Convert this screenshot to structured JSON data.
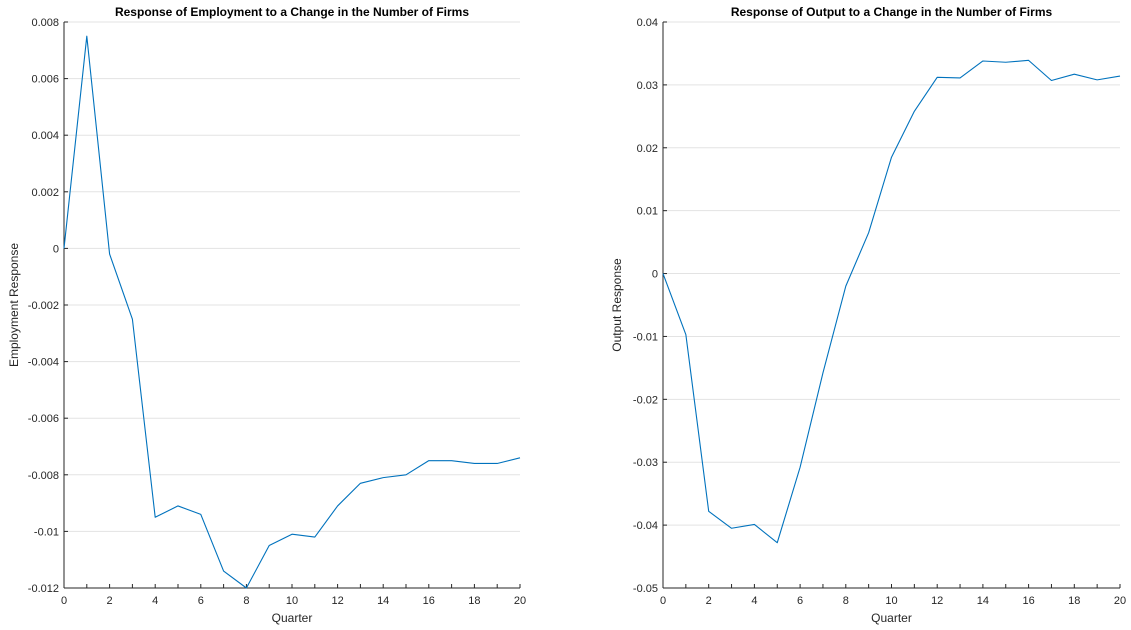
{
  "chart_data": [
    {
      "type": "line",
      "title": "Response of Employment to a Change in the Number of Firms",
      "xlabel": "Quarter",
      "ylabel": "Employment Response",
      "xlim": [
        0,
        20
      ],
      "ylim": [
        -0.012,
        0.008
      ],
      "xticks": [
        0,
        2,
        4,
        6,
        8,
        10,
        12,
        14,
        16,
        18,
        20
      ],
      "yticks": [
        -0.012,
        -0.01,
        -0.008,
        -0.006,
        -0.004,
        -0.002,
        0,
        0.002,
        0.004,
        0.006,
        0.008
      ],
      "xtick_labels": [
        "0",
        "2",
        "4",
        "6",
        "8",
        "10",
        "12",
        "14",
        "16",
        "18",
        "20"
      ],
      "ytick_labels": [
        "-0.012",
        "-0.01",
        "-0.008",
        "-0.006",
        "-0.004",
        "-0.002",
        "0",
        "0.002",
        "0.004",
        "0.006",
        "0.008"
      ],
      "grid": "horizontal",
      "color": "#0072BD",
      "series": [
        {
          "x": [
            0,
            1,
            2,
            3,
            4,
            5,
            6,
            7,
            8,
            9,
            10,
            11,
            12,
            13,
            14,
            15,
            16,
            17,
            18,
            19,
            20
          ],
          "values": [
            0,
            0.0075,
            -0.0002,
            -0.0025,
            -0.0095,
            -0.0091,
            -0.0094,
            -0.0114,
            -0.012,
            -0.0105,
            -0.0101,
            -0.0102,
            -0.0091,
            -0.0083,
            -0.0081,
            -0.008,
            -0.0075,
            -0.0075,
            -0.0076,
            -0.0076,
            -0.0074
          ]
        }
      ]
    },
    {
      "type": "line",
      "title": "Response of Output to a Change in the Number of Firms",
      "xlabel": "Quarter",
      "ylabel": "Output Response",
      "xlim": [
        0,
        20
      ],
      "ylim": [
        -0.05,
        0.04
      ],
      "xticks": [
        0,
        2,
        4,
        6,
        8,
        10,
        12,
        14,
        16,
        18,
        20
      ],
      "yticks": [
        -0.05,
        -0.04,
        -0.03,
        -0.02,
        -0.01,
        0,
        0.01,
        0.02,
        0.03,
        0.04
      ],
      "xtick_labels": [
        "0",
        "2",
        "4",
        "6",
        "8",
        "10",
        "12",
        "14",
        "16",
        "18",
        "20"
      ],
      "ytick_labels": [
        "-0.05",
        "-0.04",
        "-0.03",
        "-0.02",
        "-0.01",
        "0",
        "0.01",
        "0.02",
        "0.03",
        "0.04"
      ],
      "grid": "horizontal",
      "color": "#0072BD",
      "series": [
        {
          "x": [
            0,
            1,
            2,
            3,
            4,
            5,
            6,
            7,
            8,
            9,
            10,
            11,
            12,
            13,
            14,
            15,
            16,
            17,
            18,
            19,
            20
          ],
          "values": [
            0,
            -0.0097,
            -0.0378,
            -0.0405,
            -0.0399,
            -0.0428,
            -0.0308,
            -0.0158,
            -0.002,
            0.0065,
            0.0185,
            0.0258,
            0.0312,
            0.0311,
            0.0338,
            0.0336,
            0.0339,
            0.0307,
            0.0317,
            0.0308,
            0.0314
          ]
        }
      ]
    }
  ]
}
